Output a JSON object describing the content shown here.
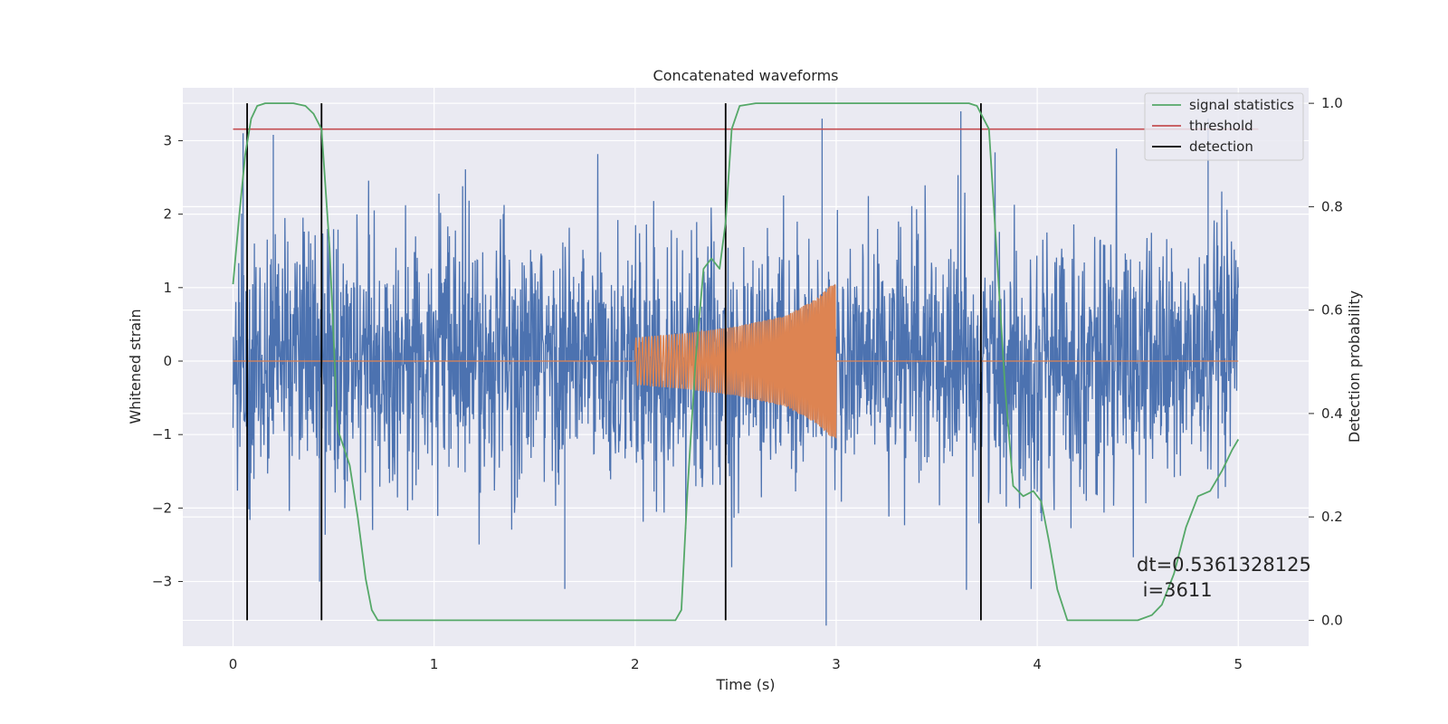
{
  "chart_data": {
    "type": "line",
    "title": "Concatenated waveforms",
    "xlabel": "Time (s)",
    "ylabel": "Whitened strain",
    "y2label": "Detection probability",
    "xlim": [
      -0.25,
      5.35
    ],
    "ylim": [
      -3.88,
      3.72
    ],
    "y2lim": [
      -0.05,
      1.03
    ],
    "xticks": [
      "0",
      "1",
      "2",
      "3",
      "4",
      "5"
    ],
    "xtick_values": [
      0,
      1,
      2,
      3,
      4,
      5
    ],
    "yticks": [
      "−3",
      "−2",
      "−1",
      "0",
      "1",
      "2",
      "3"
    ],
    "ytick_values": [
      -3,
      -2,
      -1,
      0,
      1,
      2,
      3
    ],
    "y2ticks": [
      "0.0",
      "0.2",
      "0.4",
      "0.6",
      "0.8",
      "1.0"
    ],
    "y2tick_values": [
      0.0,
      0.2,
      0.4,
      0.6,
      0.8,
      1.0
    ],
    "grid": true,
    "legend_position": "top-right",
    "noise": {
      "x_start": 0,
      "x_end": 5,
      "amplitude_std": 0.85,
      "color": "#4c72b0",
      "peaks": [
        {
          "x": 0.05,
          "y": 3.1
        },
        {
          "x": 0.2,
          "y": 3.08
        },
        {
          "x": 0.43,
          "y": -3.0
        },
        {
          "x": 1.65,
          "y": -3.1
        },
        {
          "x": 2.93,
          "y": 3.3
        },
        {
          "x": 2.95,
          "y": -3.6
        },
        {
          "x": 3.62,
          "y": 3.4
        },
        {
          "x": 3.97,
          "y": -3.1
        },
        {
          "x": 4.85,
          "y": 3.3
        }
      ]
    },
    "chirp": {
      "name": "",
      "x_start": 2.0,
      "x_end": 3.0,
      "color": "#dd8452",
      "points": [
        {
          "x": 2.0,
          "amp": 0.32
        },
        {
          "x": 2.25,
          "amp": 0.38
        },
        {
          "x": 2.5,
          "amp": 0.47
        },
        {
          "x": 2.75,
          "amp": 0.62
        },
        {
          "x": 2.9,
          "amp": 0.85
        },
        {
          "x": 3.0,
          "amp": 1.1
        }
      ]
    },
    "series": [
      {
        "name": "signal statistics",
        "color": "#55a868",
        "x": [
          0.0,
          0.03,
          0.06,
          0.09,
          0.12,
          0.16,
          0.22,
          0.3,
          0.36,
          0.4,
          0.44,
          0.48,
          0.52,
          0.58,
          0.62,
          0.66,
          0.69,
          0.72,
          0.8,
          1.0,
          1.5,
          2.0,
          2.2,
          2.23,
          2.26,
          2.3,
          2.34,
          2.38,
          2.42,
          2.45,
          2.48,
          2.52,
          2.6,
          3.0,
          3.5,
          3.66,
          3.7,
          3.72,
          3.76,
          3.8,
          3.84,
          3.88,
          3.93,
          3.98,
          4.02,
          4.06,
          4.1,
          4.15,
          4.3,
          4.5,
          4.57,
          4.62,
          4.68,
          4.74,
          4.8,
          4.86,
          4.92,
          4.97,
          5.0
        ],
        "y": [
          0.65,
          0.78,
          0.9,
          0.97,
          0.995,
          1.0,
          1.0,
          1.0,
          0.995,
          0.98,
          0.95,
          0.72,
          0.37,
          0.3,
          0.2,
          0.08,
          0.02,
          0.0,
          0.0,
          0.0,
          0.0,
          0.0,
          0.0,
          0.02,
          0.25,
          0.5,
          0.68,
          0.7,
          0.68,
          0.77,
          0.95,
          0.995,
          1.0,
          1.0,
          1.0,
          1.0,
          0.995,
          0.98,
          0.95,
          0.7,
          0.45,
          0.26,
          0.24,
          0.25,
          0.23,
          0.15,
          0.06,
          0.0,
          0.0,
          0.0,
          0.01,
          0.03,
          0.09,
          0.18,
          0.24,
          0.25,
          0.29,
          0.33,
          0.35
        ]
      },
      {
        "name": "threshold",
        "color": "#c44e52",
        "x": [
          0.0,
          5.1
        ],
        "y": [
          0.95,
          0.95
        ]
      }
    ],
    "detections": {
      "name": "detection",
      "color": "#000000",
      "x": [
        0.07,
        0.44,
        2.45,
        3.72
      ]
    },
    "annotation": {
      "line1": "dt=0.5361328125",
      "line2": " i=3611"
    }
  }
}
